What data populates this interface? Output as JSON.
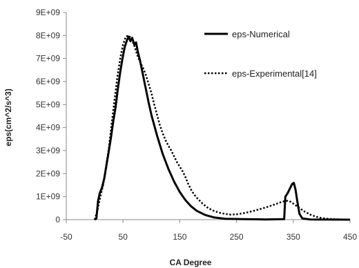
{
  "chart_data": {
    "type": "line",
    "title": "",
    "xlabel": "CA Degree",
    "ylabel": "eps(cm^2/s^3)",
    "xlim": [
      -50,
      450
    ],
    "ylim": [
      0,
      9000000000
    ],
    "x_ticks": [
      -50,
      50,
      150,
      250,
      350,
      450
    ],
    "x_tick_labels": [
      "-50",
      "50",
      "150",
      "250",
      "350",
      "450"
    ],
    "y_ticks": [
      0,
      1000000000,
      2000000000,
      3000000000,
      4000000000,
      5000000000,
      6000000000,
      7000000000,
      8000000000,
      9000000000
    ],
    "y_tick_labels": [
      "0",
      "1E+09",
      "2E+09",
      "3E+09",
      "4E+09",
      "5E+09",
      "6E+09",
      "7E+09",
      "8E+09",
      "9E+09"
    ],
    "grid": false,
    "legend_position": "top-right",
    "series": [
      {
        "name": "eps-Numerical",
        "style": "solid",
        "color": "#000000",
        "points": [
          [
            0,
            0
          ],
          [
            3,
            50000000.0
          ],
          [
            6,
            800000000.0
          ],
          [
            9,
            1150000000.0
          ],
          [
            13,
            1400000000.0
          ],
          [
            17,
            1800000000.0
          ],
          [
            21,
            2400000000.0
          ],
          [
            25,
            3000000000.0
          ],
          [
            29,
            3600000000.0
          ],
          [
            33,
            4300000000.0
          ],
          [
            37,
            4900000000.0
          ],
          [
            41,
            5700000000.0
          ],
          [
            45,
            6400000000.0
          ],
          [
            49,
            7000000000.0
          ],
          [
            53,
            7500000000.0
          ],
          [
            57,
            7800000000.0
          ],
          [
            60,
            7950000000.0
          ],
          [
            63,
            7750000000.0
          ],
          [
            66,
            7900000000.0
          ],
          [
            70,
            7600000000.0
          ],
          [
            73,
            7700000000.0
          ],
          [
            76,
            7300000000.0
          ],
          [
            80,
            6900000000.0
          ],
          [
            85,
            6300000000.0
          ],
          [
            90,
            5700000000.0
          ],
          [
            95,
            5100000000.0
          ],
          [
            100,
            4550000000.0
          ],
          [
            110,
            3650000000.0
          ],
          [
            120,
            2850000000.0
          ],
          [
            130,
            2200000000.0
          ],
          [
            140,
            1650000000.0
          ],
          [
            150,
            1200000000.0
          ],
          [
            160,
            850000000.0
          ],
          [
            170,
            580000000.0
          ],
          [
            180,
            380000000.0
          ],
          [
            195,
            200000000.0
          ],
          [
            210,
            100000000.0
          ],
          [
            230,
            40000000.0
          ],
          [
            260,
            20000000.0
          ],
          [
            300,
            10000000.0
          ],
          [
            334,
            20000000.0
          ],
          [
            336,
            1000000000.0
          ],
          [
            340,
            1150000000.0
          ],
          [
            344,
            1350000000.0
          ],
          [
            348,
            1550000000.0
          ],
          [
            351,
            1600000000.0
          ],
          [
            354,
            1300000000.0
          ],
          [
            357,
            800000000.0
          ],
          [
            361,
            250000000.0
          ],
          [
            366,
            50000000.0
          ],
          [
            380,
            10000000.0
          ],
          [
            450,
            0
          ]
        ]
      },
      {
        "name": "eps-Experimental[14]",
        "style": "dotted",
        "color": "#000000",
        "points": [
          [
            0,
            0
          ],
          [
            5,
            400000000.0
          ],
          [
            10,
            1000000000.0
          ],
          [
            15,
            1500000000.0
          ],
          [
            20,
            2300000000.0
          ],
          [
            25,
            3100000000.0
          ],
          [
            30,
            4200000000.0
          ],
          [
            35,
            5200000000.0
          ],
          [
            40,
            6200000000.0
          ],
          [
            45,
            7000000000.0
          ],
          [
            50,
            7600000000.0
          ],
          [
            55,
            7950000000.0
          ],
          [
            60,
            8000000000.0
          ],
          [
            65,
            7850000000.0
          ],
          [
            70,
            7550000000.0
          ],
          [
            75,
            7150000000.0
          ],
          [
            80,
            6850000000.0
          ],
          [
            85,
            6600000000.0
          ],
          [
            90,
            6300000000.0
          ],
          [
            95,
            5900000000.0
          ],
          [
            100,
            5500000000.0
          ],
          [
            105,
            5000000000.0
          ],
          [
            110,
            4550000000.0
          ],
          [
            115,
            4100000000.0
          ],
          [
            120,
            3750000000.0
          ],
          [
            125,
            3450000000.0
          ],
          [
            130,
            3200000000.0
          ],
          [
            135,
            3000000000.0
          ],
          [
            140,
            2750000000.0
          ],
          [
            145,
            2500000000.0
          ],
          [
            150,
            2300000000.0
          ],
          [
            155,
            2100000000.0
          ],
          [
            160,
            1850000000.0
          ],
          [
            165,
            1550000000.0
          ],
          [
            170,
            1300000000.0
          ],
          [
            175,
            1100000000.0
          ],
          [
            180,
            950000000.0
          ],
          [
            190,
            700000000.0
          ],
          [
            200,
            500000000.0
          ],
          [
            210,
            380000000.0
          ],
          [
            220,
            300000000.0
          ],
          [
            230,
            250000000.0
          ],
          [
            240,
            220000000.0
          ],
          [
            250,
            230000000.0
          ],
          [
            260,
            270000000.0
          ],
          [
            270,
            320000000.0
          ],
          [
            280,
            380000000.0
          ],
          [
            290,
            450000000.0
          ],
          [
            300,
            520000000.0
          ],
          [
            310,
            600000000.0
          ],
          [
            320,
            680000000.0
          ],
          [
            330,
            780000000.0
          ],
          [
            340,
            820000000.0
          ],
          [
            345,
            780000000.0
          ],
          [
            350,
            700000000.0
          ],
          [
            360,
            520000000.0
          ],
          [
            370,
            350000000.0
          ],
          [
            380,
            220000000.0
          ],
          [
            390,
            130000000.0
          ],
          [
            400,
            70000000.0
          ],
          [
            410,
            40000000.0
          ],
          [
            420,
            20000000.0
          ],
          [
            435,
            10000000.0
          ],
          [
            450,
            0
          ]
        ]
      }
    ]
  }
}
